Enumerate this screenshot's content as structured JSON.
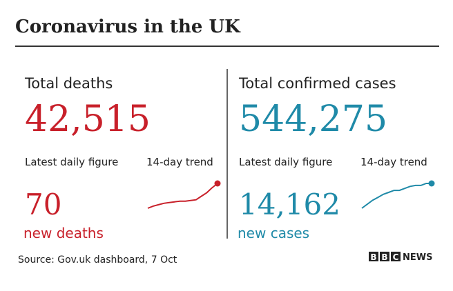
{
  "title": "Coronavirus in the UK",
  "panels": [
    {
      "heading": "Total deaths",
      "total": "42,515",
      "daily_label": "Latest daily figure",
      "trend_label": "14-day trend",
      "daily": "70",
      "daily_unit": "new deaths",
      "color": "#c8202a",
      "trend": [
        8,
        11,
        13,
        15,
        16,
        17,
        18,
        18,
        19,
        20,
        25,
        30,
        37,
        43
      ]
    },
    {
      "heading": "Total confirmed cases",
      "total": "544,275",
      "daily_label": "Latest daily figure",
      "trend_label": "14-day trend",
      "daily": "14,162",
      "daily_unit": "new cases",
      "color": "#1f8aa8",
      "trend": [
        19,
        23,
        27,
        30,
        33,
        35,
        37,
        37,
        39,
        41,
        42,
        42,
        44,
        44
      ]
    }
  ],
  "source": "Source: Gov.uk dashboard, 7 Oct",
  "logo": [
    "B",
    "B",
    "C",
    "NEWS"
  ]
}
